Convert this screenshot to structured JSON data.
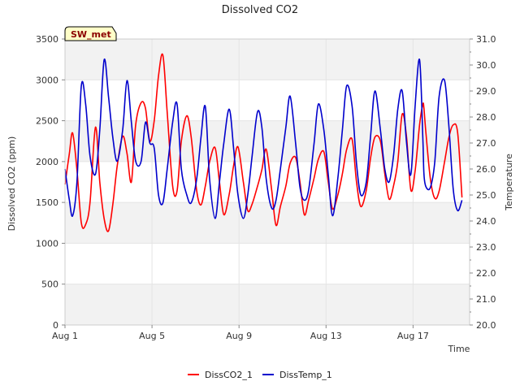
{
  "chart_data": {
    "type": "line",
    "title": "Dissolved CO2",
    "station_label": "SW_met",
    "xlabel": "Time",
    "ylabel": "Dissolved CO2 (ppm)",
    "y2label": "Temperature",
    "xlim": [
      0,
      18.6
    ],
    "ylim": [
      0,
      3500
    ],
    "y2lim": [
      20.0,
      31.0
    ],
    "x_ticks": [
      {
        "value": 0,
        "label": "Aug 1"
      },
      {
        "value": 4,
        "label": "Aug 5"
      },
      {
        "value": 8,
        "label": "Aug 9"
      },
      {
        "value": 12,
        "label": "Aug 13"
      },
      {
        "value": 16,
        "label": "Aug 17"
      }
    ],
    "y_ticks": [
      "0",
      "500",
      "1000",
      "1500",
      "2000",
      "2500",
      "3000",
      "3500"
    ],
    "y_tick_values": [
      0,
      500,
      1000,
      1500,
      2000,
      2500,
      3000,
      3500
    ],
    "y2_ticks": [
      "20.0",
      "21.0",
      "22.0",
      "23.0",
      "24.0",
      "25.0",
      "26.0",
      "27.0",
      "28.0",
      "29.0",
      "30.0",
      "31.0"
    ],
    "y2_tick_values": [
      20,
      21,
      22,
      23,
      24,
      25,
      26,
      27,
      28,
      29,
      30,
      31
    ],
    "grid": true,
    "legend_position": "bottom-center",
    "series": [
      {
        "name": "DissCO2_1",
        "axis": "left",
        "color": "#ff0000",
        "x": [
          0.0,
          0.2,
          0.35,
          0.55,
          0.75,
          0.95,
          1.15,
          1.4,
          1.6,
          1.8,
          2.0,
          2.2,
          2.4,
          2.65,
          2.85,
          3.05,
          3.25,
          3.5,
          3.7,
          3.9,
          4.1,
          4.3,
          4.5,
          4.7,
          4.95,
          5.15,
          5.35,
          5.6,
          5.8,
          6.05,
          6.25,
          6.45,
          6.65,
          6.9,
          7.1,
          7.3,
          7.55,
          7.75,
          7.95,
          8.2,
          8.4,
          8.6,
          8.85,
          9.05,
          9.25,
          9.5,
          9.7,
          9.9,
          10.15,
          10.35,
          10.6,
          10.8,
          11.0,
          11.2,
          11.45,
          11.65,
          11.9,
          12.1,
          12.3,
          12.55,
          12.75,
          12.95,
          13.2,
          13.4,
          13.6,
          13.85,
          14.05,
          14.25,
          14.5,
          14.7,
          14.9,
          15.1,
          15.3,
          15.5,
          15.7,
          15.9,
          16.1,
          16.3,
          16.45,
          16.5,
          16.6,
          16.8,
          17.0,
          17.2,
          17.45,
          17.65,
          17.85,
          18.05,
          18.25
        ],
        "values": [
          1720,
          2100,
          2350,
          1900,
          1250,
          1230,
          1500,
          2420,
          1750,
          1300,
          1150,
          1480,
          1950,
          2310,
          2100,
          1750,
          2450,
          2720,
          2650,
          2250,
          2500,
          3050,
          3300,
          2600,
          1700,
          1640,
          2250,
          2560,
          2300,
          1650,
          1470,
          1700,
          2000,
          2170,
          1750,
          1350,
          1600,
          1950,
          2180,
          1750,
          1400,
          1480,
          1700,
          1900,
          2150,
          1650,
          1220,
          1450,
          1700,
          1980,
          2050,
          1750,
          1350,
          1530,
          1800,
          2030,
          2120,
          1750,
          1420,
          1600,
          1850,
          2150,
          2270,
          1750,
          1450,
          1650,
          2050,
          2300,
          2250,
          1850,
          1540,
          1700,
          2000,
          2580,
          2300,
          1650,
          1900,
          2450,
          2700,
          2650,
          2320,
          1780,
          1550,
          1640,
          2000,
          2300,
          2450,
          2350,
          1560
        ]
      },
      {
        "name": "DissTemp_1",
        "axis": "right",
        "color": "#0000cc",
        "x": [
          0.0,
          0.2,
          0.35,
          0.55,
          0.75,
          0.95,
          1.15,
          1.4,
          1.6,
          1.8,
          2.0,
          2.2,
          2.4,
          2.65,
          2.85,
          3.05,
          3.25,
          3.5,
          3.7,
          3.9,
          4.1,
          4.3,
          4.5,
          4.7,
          4.95,
          5.15,
          5.35,
          5.6,
          5.8,
          6.05,
          6.25,
          6.45,
          6.65,
          6.9,
          7.1,
          7.3,
          7.55,
          7.75,
          7.95,
          8.2,
          8.4,
          8.6,
          8.85,
          9.05,
          9.25,
          9.5,
          9.7,
          9.9,
          10.15,
          10.35,
          10.6,
          10.8,
          11.0,
          11.2,
          11.45,
          11.65,
          11.9,
          12.1,
          12.3,
          12.55,
          12.75,
          12.95,
          13.2,
          13.4,
          13.6,
          13.85,
          14.05,
          14.25,
          14.5,
          14.7,
          14.9,
          15.1,
          15.3,
          15.5,
          15.7,
          15.9,
          16.1,
          16.3,
          16.45,
          16.5,
          16.6,
          16.8,
          17.0,
          17.2,
          17.45,
          17.65,
          17.85,
          18.05,
          18.25
        ],
        "values": [
          26.0,
          24.8,
          24.2,
          25.5,
          29.2,
          28.5,
          26.5,
          25.8,
          27.5,
          30.2,
          28.8,
          27.2,
          26.3,
          27.5,
          29.4,
          27.8,
          26.3,
          26.3,
          27.8,
          27.0,
          26.8,
          25.0,
          24.7,
          26.0,
          27.8,
          28.5,
          26.0,
          25.0,
          24.7,
          25.6,
          27.2,
          28.4,
          25.6,
          24.1,
          25.5,
          27.0,
          28.3,
          26.8,
          25.0,
          24.1,
          25.0,
          26.5,
          28.2,
          27.6,
          25.6,
          24.5,
          24.8,
          26.0,
          27.6,
          28.8,
          27.0,
          25.3,
          24.8,
          25.2,
          27.0,
          28.5,
          27.5,
          25.8,
          24.2,
          25.7,
          27.5,
          29.2,
          28.4,
          26.2,
          25.0,
          25.5,
          27.3,
          29.0,
          27.5,
          26.0,
          25.5,
          26.5,
          28.3,
          29.0,
          27.0,
          25.8,
          28.5,
          30.2,
          27.2,
          25.8,
          25.3,
          25.3,
          26.3,
          28.8,
          29.4,
          27.6,
          25.2,
          24.4,
          24.8
        ]
      }
    ]
  },
  "legend": {
    "items": [
      {
        "label": "DissCO2_1",
        "color": "#ff0000"
      },
      {
        "label": "DissTemp_1",
        "color": "#0000cc"
      }
    ]
  }
}
